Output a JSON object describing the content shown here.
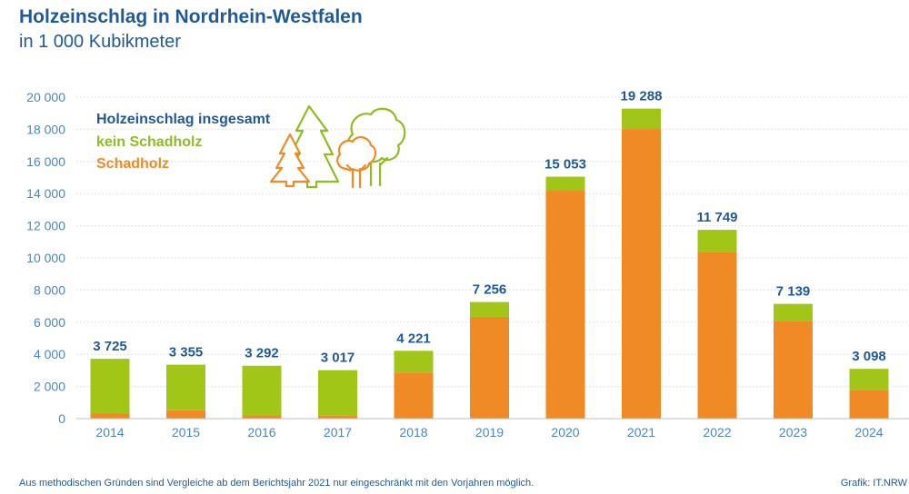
{
  "header": {
    "title": "Holzeinschlag in Nordrhein-Westfalen",
    "subtitle": "in 1 000 Kubikmeter"
  },
  "legend": {
    "total": "Holzeinschlag insgesamt",
    "green": "kein Schadholz",
    "orange": "Schadholz"
  },
  "footer": {
    "note": "Aus methodischen Gründen sind Vergleiche ab dem Berichtsjahr 2021 nur eingeschränkt mit den Vorjahren möglich.",
    "source": "Grafik: IT.NRW"
  },
  "colors": {
    "green": "#a2c617",
    "orange": "#f08a24",
    "text": "#1f5a96",
    "tick": "#4a86c5",
    "grid": "#d9d9d9"
  },
  "icons": [
    "tree-icons"
  ],
  "chart_data": {
    "type": "bar",
    "stacked": true,
    "categories": [
      "2014",
      "2015",
      "2016",
      "2017",
      "2018",
      "2019",
      "2020",
      "2021",
      "2022",
      "2023",
      "2024"
    ],
    "series": [
      {
        "name": "Schadholz",
        "values": [
          310,
          520,
          170,
          210,
          2870,
          6330,
          14180,
          18020,
          10380,
          6080,
          1790
        ]
      },
      {
        "name": "kein Schadholz",
        "values": [
          3415,
          2835,
          3122,
          2807,
          1351,
          926,
          873,
          1268,
          1369,
          1059,
          1308
        ]
      }
    ],
    "totals": [
      3725,
      3355,
      3292,
      3017,
      4221,
      7256,
      15053,
      19288,
      11749,
      7139,
      3098
    ],
    "total_labels": [
      "3 725",
      "3 355",
      "3 292",
      "3 017",
      "4 221",
      "7 256",
      "15 053",
      "19 288",
      "11 749",
      "7 139",
      "3 098"
    ],
    "yticks": [
      0,
      2000,
      4000,
      6000,
      8000,
      10000,
      12000,
      14000,
      16000,
      18000,
      20000
    ],
    "ytick_labels": [
      "0",
      "2 000",
      "4 000",
      "6 000",
      "8 000",
      "10 000",
      "12 000",
      "14 000",
      "16 000",
      "18 000",
      "20 000"
    ],
    "ylim": [
      0,
      20000
    ],
    "grid": true,
    "legend_position": "top-left"
  }
}
